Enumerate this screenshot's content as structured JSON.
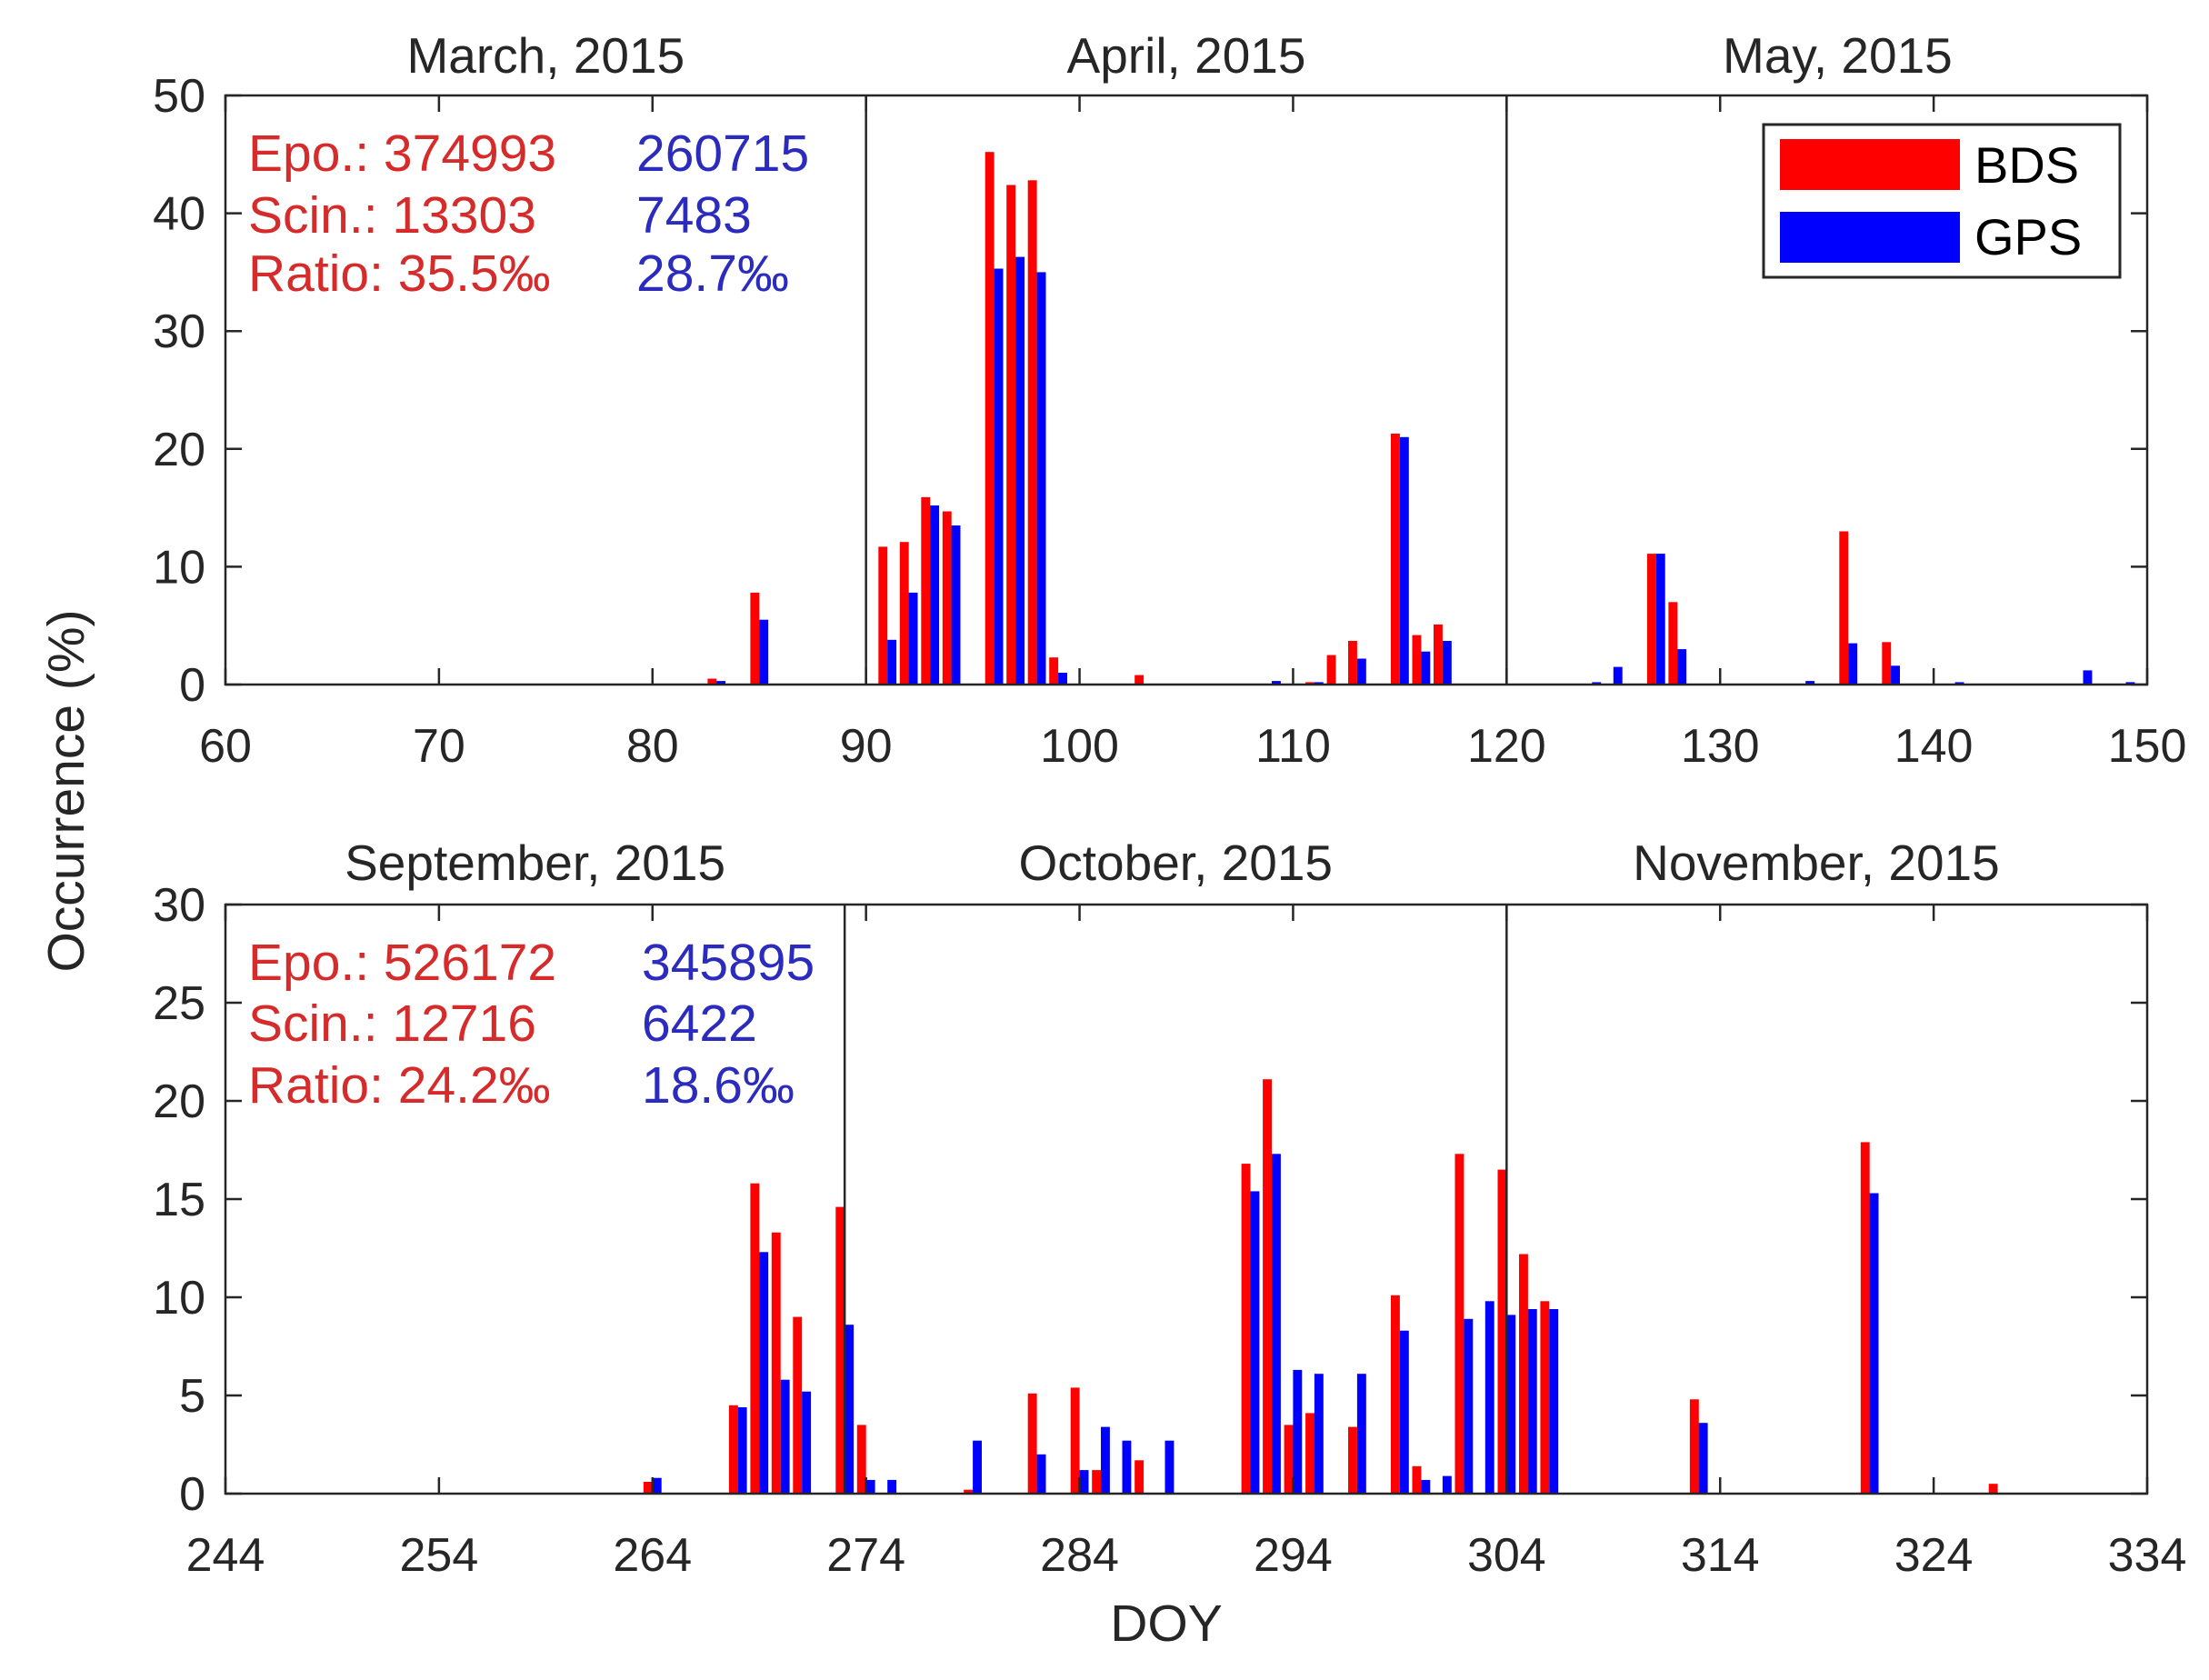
{
  "colors": {
    "bds": "#ff0000",
    "gps": "#0000ff",
    "bds_text": "#d62b2b",
    "gps_text": "#2b2bbd",
    "axis": "#262626"
  },
  "ylabel": "Occurrence (%)",
  "xlabel": "DOY",
  "legend": {
    "position": "top-right",
    "entries": [
      "BDS",
      "GPS"
    ]
  },
  "chart_data": [
    {
      "type": "bar",
      "xlabel": "",
      "ylabel": "Occurrence (%)",
      "xlim": [
        60,
        150
      ],
      "ylim": [
        0,
        50
      ],
      "xticks": [
        60,
        70,
        80,
        90,
        100,
        110,
        120,
        130,
        140,
        150
      ],
      "yticks": [
        0,
        10,
        20,
        30,
        40,
        50
      ],
      "months": [
        {
          "label": "March, 2015",
          "center": 75
        },
        {
          "label": "April, 2015",
          "center": 105
        },
        {
          "label": "May, 2015",
          "center": 135.5
        }
      ],
      "month_boundaries": [
        90,
        120
      ],
      "stats": [
        {
          "label_bds": "Epo.: 374993",
          "label_gps": "260715"
        },
        {
          "label_bds": "Scin.: 13303",
          "label_gps": "7483"
        },
        {
          "label_bds": "Ratio: 35.5‰",
          "label_gps": "28.7‰"
        }
      ],
      "series": [
        {
          "name": "BDS",
          "x": [
            83,
            85,
            91,
            92,
            93,
            94,
            96,
            97,
            98,
            99,
            103,
            111,
            112,
            113,
            115,
            116,
            117,
            127,
            128,
            136,
            138
          ],
          "values": [
            0.5,
            7.8,
            11.7,
            12.1,
            15.9,
            14.7,
            45.2,
            42.4,
            42.8,
            2.3,
            0.8,
            0.2,
            2.5,
            3.7,
            21.3,
            4.2,
            5.1,
            11.1,
            7.0,
            13.0,
            3.6
          ]
        },
        {
          "name": "GPS",
          "x": [
            83,
            85,
            91,
            92,
            93,
            94,
            96,
            97,
            98,
            99,
            109,
            111,
            113,
            115,
            116,
            117,
            124,
            125,
            127,
            128,
            134,
            136,
            138,
            141,
            147,
            149
          ],
          "values": [
            0.3,
            5.5,
            3.8,
            7.8,
            15.2,
            13.5,
            35.3,
            36.3,
            35.0,
            1.0,
            0.3,
            0.2,
            2.2,
            21.0,
            2.8,
            3.7,
            0.2,
            1.5,
            11.1,
            3.0,
            0.3,
            3.5,
            1.6,
            0.2,
            1.2,
            0.2
          ]
        }
      ]
    },
    {
      "type": "bar",
      "xlabel": "DOY",
      "ylabel": "Occurrence (%)",
      "xlim": [
        244,
        334
      ],
      "ylim": [
        0,
        30
      ],
      "xticks": [
        244,
        254,
        264,
        274,
        284,
        294,
        304,
        314,
        324,
        334
      ],
      "yticks": [
        0,
        5,
        10,
        15,
        20,
        25,
        30
      ],
      "months": [
        {
          "label": "September, 2015",
          "center": 258.5
        },
        {
          "label": "October, 2015",
          "center": 288.5
        },
        {
          "label": "November, 2015",
          "center": 318.5
        }
      ],
      "month_boundaries": [
        273,
        304
      ],
      "stats": [
        {
          "label_bds": "Epo.: 526172",
          "label_gps": "345895"
        },
        {
          "label_bds": "Scin.: 12716",
          "label_gps": "6422"
        },
        {
          "label_bds": "Ratio: 24.2‰",
          "label_gps": "18.6‰"
        }
      ],
      "series": [
        {
          "name": "BDS",
          "x": [
            264,
            268,
            269,
            270,
            271,
            273,
            274,
            279,
            282,
            284,
            285,
            287,
            292,
            293,
            294,
            295,
            297,
            299,
            300,
            302,
            304,
            305,
            306,
            313,
            321,
            327
          ],
          "values": [
            0.6,
            4.5,
            15.8,
            13.3,
            9.0,
            14.6,
            3.5,
            0.2,
            5.1,
            5.4,
            1.2,
            1.7,
            16.8,
            21.1,
            3.5,
            4.1,
            3.4,
            10.1,
            1.4,
            17.3,
            16.5,
            12.2,
            9.8,
            4.8,
            17.9,
            0.5
          ]
        },
        {
          "name": "GPS",
          "x": [
            264,
            268,
            269,
            270,
            271,
            273,
            274,
            275,
            279,
            282,
            284,
            285,
            286,
            288,
            292,
            293,
            294,
            295,
            297,
            299,
            300,
            301,
            302,
            303,
            304,
            305,
            306,
            313,
            321
          ],
          "values": [
            0.8,
            4.4,
            12.3,
            5.8,
            5.2,
            8.6,
            0.7,
            0.7,
            2.7,
            2.0,
            1.2,
            3.4,
            2.7,
            2.7,
            15.4,
            17.3,
            6.3,
            6.1,
            6.1,
            8.3,
            0.7,
            0.9,
            8.9,
            9.8,
            9.1,
            9.4,
            9.4,
            3.6,
            15.3
          ]
        }
      ]
    }
  ]
}
